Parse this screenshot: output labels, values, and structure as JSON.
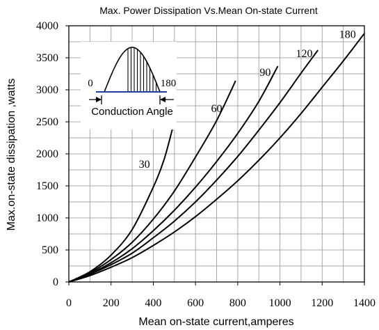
{
  "chart_data": {
    "type": "line",
    "title": "Max. Power Dissipation Vs.Mean On-state Current",
    "xlabel": "Mean on-state current,amperes",
    "ylabel": "Max.on-state dissipation ,watts",
    "xlim": [
      0,
      1400
    ],
    "ylim": [
      0,
      4000
    ],
    "x_ticks": [
      "0",
      "200",
      "400",
      "600",
      "800",
      "1000",
      "1200",
      "1400"
    ],
    "y_ticks": [
      "0",
      "500",
      "1000",
      "1500",
      "2000",
      "2500",
      "3000",
      "3500",
      "4000"
    ],
    "grid": true,
    "series": [
      {
        "name": "30",
        "points": [
          [
            0,
            0
          ],
          [
            100,
            160
          ],
          [
            200,
            420
          ],
          [
            300,
            820
          ],
          [
            400,
            1480
          ],
          [
            450,
            1900
          ],
          [
            490,
            2380
          ]
        ]
      },
      {
        "name": "60",
        "points": [
          [
            0,
            0
          ],
          [
            100,
            145
          ],
          [
            200,
            350
          ],
          [
            300,
            620
          ],
          [
            400,
            980
          ],
          [
            500,
            1420
          ],
          [
            600,
            1950
          ],
          [
            700,
            2520
          ],
          [
            790,
            3140
          ]
        ]
      },
      {
        "name": "90",
        "points": [
          [
            0,
            0
          ],
          [
            100,
            130
          ],
          [
            200,
            300
          ],
          [
            300,
            520
          ],
          [
            400,
            800
          ],
          [
            500,
            1120
          ],
          [
            600,
            1480
          ],
          [
            700,
            1880
          ],
          [
            800,
            2320
          ],
          [
            900,
            2820
          ],
          [
            990,
            3370
          ]
        ]
      },
      {
        "name": "120",
        "points": [
          [
            0,
            0
          ],
          [
            100,
            120
          ],
          [
            200,
            270
          ],
          [
            300,
            450
          ],
          [
            400,
            690
          ],
          [
            500,
            950
          ],
          [
            600,
            1250
          ],
          [
            700,
            1590
          ],
          [
            800,
            1960
          ],
          [
            900,
            2370
          ],
          [
            1000,
            2800
          ],
          [
            1100,
            3260
          ],
          [
            1180,
            3620
          ]
        ]
      },
      {
        "name": "180",
        "points": [
          [
            0,
            0
          ],
          [
            100,
            100
          ],
          [
            200,
            230
          ],
          [
            300,
            380
          ],
          [
            400,
            570
          ],
          [
            500,
            780
          ],
          [
            600,
            1020
          ],
          [
            700,
            1290
          ],
          [
            800,
            1580
          ],
          [
            900,
            1900
          ],
          [
            1000,
            2250
          ],
          [
            1100,
            2630
          ],
          [
            1200,
            3040
          ],
          [
            1300,
            3450
          ],
          [
            1400,
            3880
          ]
        ]
      }
    ],
    "inset": {
      "start_label": "0",
      "end_label": "180",
      "caption": "Conduction Angle"
    }
  }
}
